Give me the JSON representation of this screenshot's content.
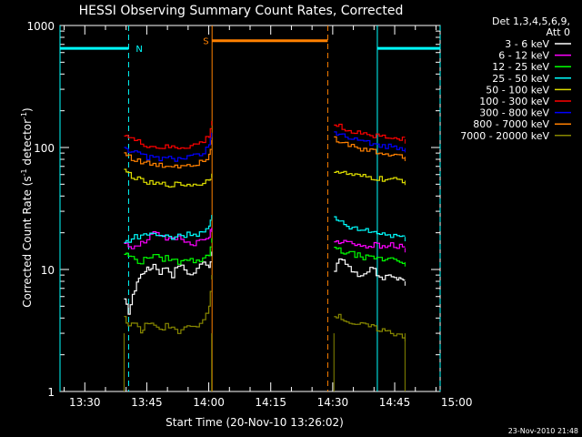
{
  "chart_data": {
    "type": "line",
    "title": "HESSI Observing Summary Count Rates, Corrected",
    "xlabel": "Start Time (20-Nov-10 13:26:02)",
    "ylabel_parts": [
      "Corrected Count Rate (s",
      "-1",
      " detector",
      "-1",
      ")"
    ],
    "yscale": "log",
    "ylim": [
      1,
      1000
    ],
    "xlim_min": [
      -6,
      86
    ],
    "x_ticks": [
      {
        "label": "13:30",
        "minute": 0
      },
      {
        "label": "13:45",
        "minute": 15
      },
      {
        "label": "14:00",
        "minute": 30
      },
      {
        "label": "14:15",
        "minute": 45
      },
      {
        "label": "14:30",
        "minute": 60
      },
      {
        "label": "14:45",
        "minute": 75
      },
      {
        "label": "15:00",
        "minute": 90
      }
    ],
    "y_ticks": [
      {
        "label": "1000",
        "value": 1000
      },
      {
        "label": "100",
        "value": 100
      },
      {
        "label": "10",
        "value": 10
      },
      {
        "label": "1",
        "value": 1
      }
    ],
    "legend_header": [
      "Det 1,3,4,5,6,9,",
      "Att 0"
    ],
    "series": [
      {
        "name": "3 - 6 keV",
        "color": "#ffffff",
        "seg1": [
          [
            9.5,
            5.5
          ],
          [
            10.5,
            4.5
          ],
          [
            11.5,
            6
          ],
          [
            12.5,
            8
          ],
          [
            13.5,
            9
          ],
          [
            14.5,
            10
          ],
          [
            15.5,
            10
          ],
          [
            16.5,
            11
          ],
          [
            18,
            9.5
          ],
          [
            19.5,
            10.5
          ],
          [
            21,
            9
          ],
          [
            22.5,
            11
          ],
          [
            24,
            10
          ],
          [
            25.5,
            9
          ],
          [
            27,
            10
          ],
          [
            28.5,
            12
          ],
          [
            30,
            10.5
          ],
          [
            30.7,
            14
          ]
        ],
        "seg2": [
          [
            60.3,
            10
          ],
          [
            61.5,
            12
          ],
          [
            63,
            11
          ],
          [
            64.5,
            10
          ],
          [
            66,
            9
          ],
          [
            67.5,
            9.5
          ],
          [
            69,
            10.5
          ],
          [
            70.5,
            9
          ],
          [
            72,
            8.5
          ],
          [
            73.5,
            9
          ],
          [
            75.5,
            8.5
          ],
          [
            76.5,
            8
          ],
          [
            77.5,
            8
          ]
        ]
      },
      {
        "name": "6 - 12 keV",
        "color": "#ff00ff",
        "seg1": [
          [
            9.5,
            17
          ],
          [
            10.5,
            15
          ],
          [
            12,
            16
          ],
          [
            13.5,
            16.5
          ],
          [
            15,
            17.5
          ],
          [
            16.5,
            21
          ],
          [
            18,
            19.5
          ],
          [
            19.5,
            18
          ],
          [
            21,
            17.5
          ],
          [
            22.5,
            18.5
          ],
          [
            24,
            17.5
          ],
          [
            25.5,
            16
          ],
          [
            27,
            17
          ],
          [
            28.5,
            17.5
          ],
          [
            30,
            18.5
          ],
          [
            30.7,
            22
          ]
        ],
        "seg2": [
          [
            60.3,
            17
          ],
          [
            62,
            16.5
          ],
          [
            64,
            17
          ],
          [
            66,
            16
          ],
          [
            68,
            15.5
          ],
          [
            70,
            16
          ],
          [
            72,
            15
          ],
          [
            74,
            16
          ],
          [
            75.5,
            15.5
          ],
          [
            77.5,
            15
          ]
        ]
      },
      {
        "name": "12 - 25 keV",
        "color": "#00ff00",
        "seg1": [
          [
            9.5,
            13.5
          ],
          [
            10.5,
            13
          ],
          [
            12,
            12
          ],
          [
            13.5,
            11.5
          ],
          [
            15,
            12.5
          ],
          [
            16.5,
            13.5
          ],
          [
            18,
            12
          ],
          [
            19.5,
            12.5
          ],
          [
            21,
            12
          ],
          [
            22.5,
            11.5
          ],
          [
            24,
            12.5
          ],
          [
            25.5,
            12
          ],
          [
            27,
            11.5
          ],
          [
            28.5,
            12.5
          ],
          [
            30,
            13.5
          ],
          [
            30.7,
            18
          ]
        ],
        "seg2": [
          [
            60.3,
            15
          ],
          [
            62,
            14
          ],
          [
            64,
            13.5
          ],
          [
            66,
            13
          ],
          [
            68,
            12.5
          ],
          [
            70,
            12.5
          ],
          [
            72,
            12
          ],
          [
            74,
            12.5
          ],
          [
            75.5,
            12
          ],
          [
            77.5,
            11.5
          ]
        ]
      },
      {
        "name": "25 - 50 keV",
        "color": "#00ffff",
        "seg1": [
          [
            9.5,
            16.5
          ],
          [
            10.5,
            17.5
          ],
          [
            12,
            18.5
          ],
          [
            13.5,
            19
          ],
          [
            15,
            19.5
          ],
          [
            16.5,
            20
          ],
          [
            18,
            18.5
          ],
          [
            19.5,
            19
          ],
          [
            21,
            18
          ],
          [
            22.5,
            19.5
          ],
          [
            24,
            19
          ],
          [
            25.5,
            20
          ],
          [
            27,
            19.5
          ],
          [
            28.5,
            20.5
          ],
          [
            30,
            22
          ],
          [
            30.7,
            28
          ]
        ],
        "seg2": [
          [
            60.3,
            26
          ],
          [
            62,
            24
          ],
          [
            64,
            22
          ],
          [
            66,
            21
          ],
          [
            68,
            21
          ],
          [
            70,
            20
          ],
          [
            72,
            19.5
          ],
          [
            74,
            19
          ],
          [
            75.5,
            19
          ],
          [
            77.5,
            18.5
          ]
        ]
      },
      {
        "name": "50 - 100 keV",
        "color": "#dddd00",
        "seg1": [
          [
            9.5,
            64
          ],
          [
            10.5,
            61
          ],
          [
            12,
            56
          ],
          [
            13.5,
            53
          ],
          [
            15,
            51.5
          ],
          [
            16.5,
            50
          ],
          [
            18,
            50
          ],
          [
            19.5,
            49.5
          ],
          [
            21,
            50
          ],
          [
            22.5,
            49.5
          ],
          [
            24,
            50
          ],
          [
            25.5,
            49.5
          ],
          [
            27,
            50
          ],
          [
            28.5,
            51.5
          ],
          [
            30,
            54
          ],
          [
            30.7,
            61
          ]
        ],
        "seg2": [
          [
            60.3,
            65
          ],
          [
            62,
            62
          ],
          [
            64,
            60
          ],
          [
            66,
            58
          ],
          [
            68,
            57
          ],
          [
            70,
            56
          ],
          [
            72,
            55
          ],
          [
            74,
            54
          ],
          [
            75.5,
            54
          ],
          [
            77.5,
            53.5
          ]
        ]
      },
      {
        "name": "100 - 300 keV",
        "color": "#ff0000",
        "seg1": [
          [
            9.5,
            130
          ],
          [
            10.5,
            122
          ],
          [
            12,
            113
          ],
          [
            13.5,
            108
          ],
          [
            15,
            104
          ],
          [
            16.5,
            101
          ],
          [
            18,
            100
          ],
          [
            19.5,
            100
          ],
          [
            21,
            100
          ],
          [
            22.5,
            100
          ],
          [
            24,
            101
          ],
          [
            25.5,
            103
          ],
          [
            27,
            106
          ],
          [
            28.5,
            112
          ],
          [
            30,
            125
          ],
          [
            30.7,
            165
          ]
        ],
        "seg2": [
          [
            60.3,
            155
          ],
          [
            61.5,
            148
          ],
          [
            63,
            141
          ],
          [
            64.5,
            137
          ],
          [
            66,
            133
          ],
          [
            67.5,
            130
          ],
          [
            69,
            127
          ],
          [
            70.5,
            124
          ],
          [
            72,
            121
          ],
          [
            73.5,
            119
          ],
          [
            75.5,
            118
          ],
          [
            77.5,
            117
          ]
        ]
      },
      {
        "name": "300 - 800 keV",
        "color": "#0000ff",
        "seg1": [
          [
            9.5,
            102
          ],
          [
            10.5,
            96
          ],
          [
            12,
            90
          ],
          [
            13.5,
            86
          ],
          [
            15,
            83.5
          ],
          [
            16.5,
            82
          ],
          [
            18,
            81
          ],
          [
            19.5,
            81
          ],
          [
            21,
            81
          ],
          [
            22.5,
            81
          ],
          [
            24,
            82
          ],
          [
            25.5,
            83.5
          ],
          [
            27,
            86
          ],
          [
            28.5,
            91
          ],
          [
            30,
            101
          ],
          [
            30.7,
            132
          ]
        ],
        "seg2": [
          [
            60.3,
            133
          ],
          [
            61.5,
            127
          ],
          [
            63,
            121
          ],
          [
            64.5,
            117
          ],
          [
            66,
            113
          ],
          [
            67.5,
            110
          ],
          [
            69,
            108
          ],
          [
            70.5,
            106
          ],
          [
            72,
            104
          ],
          [
            73.5,
            102
          ],
          [
            75.5,
            100
          ],
          [
            77.5,
            99
          ]
        ]
      },
      {
        "name": "800 - 7000 keV",
        "color": "#ff8000",
        "seg1": [
          [
            9.5,
            90
          ],
          [
            10.5,
            85
          ],
          [
            12,
            79
          ],
          [
            13.5,
            76
          ],
          [
            15,
            74
          ],
          [
            16.5,
            72
          ],
          [
            18,
            71
          ],
          [
            19.5,
            71
          ],
          [
            21,
            71
          ],
          [
            22.5,
            71
          ],
          [
            24,
            72
          ],
          [
            25.5,
            73
          ],
          [
            27,
            75
          ],
          [
            28.5,
            79
          ],
          [
            30,
            87
          ],
          [
            30.7,
            115
          ]
        ],
        "seg2": [
          [
            60.3,
            118
          ],
          [
            61.5,
            112
          ],
          [
            63,
            106
          ],
          [
            64.5,
            102
          ],
          [
            66,
            98
          ],
          [
            67.5,
            95
          ],
          [
            69,
            93
          ],
          [
            70.5,
            91
          ],
          [
            72,
            89
          ],
          [
            73.5,
            87
          ],
          [
            75.5,
            85
          ],
          [
            77.5,
            84
          ]
        ]
      },
      {
        "name": "7000 - 20000 keV",
        "color": "#888800",
        "seg1": [
          [
            9.5,
            4
          ],
          [
            10.5,
            3.5
          ],
          [
            12,
            3.6
          ],
          [
            13.5,
            3
          ],
          [
            14.5,
            3.5
          ],
          [
            16,
            3.5
          ],
          [
            18,
            3.2
          ],
          [
            19.5,
            3.5
          ],
          [
            21,
            3.5
          ],
          [
            22.5,
            3
          ],
          [
            24,
            3.5
          ],
          [
            25.5,
            3.5
          ],
          [
            27,
            3.5
          ],
          [
            28.5,
            4
          ],
          [
            30,
            5
          ],
          [
            30.7,
            9
          ]
        ],
        "seg2": [
          [
            60.3,
            4.3
          ],
          [
            62,
            4
          ],
          [
            64,
            3.7
          ],
          [
            66,
            3.5
          ],
          [
            68,
            3.5
          ],
          [
            70,
            3.3
          ],
          [
            72,
            3.2
          ],
          [
            74,
            3
          ],
          [
            75.5,
            3
          ],
          [
            77.5,
            2.8
          ]
        ]
      }
    ],
    "flags": [
      {
        "label": "N",
        "color": "#00ffff",
        "value": 650,
        "bars": [
          [
            -6,
            10.6
          ],
          [
            70.8,
            86
          ]
        ],
        "dashed": [
          10.6,
          86
        ],
        "solid": [
          -6,
          70.8
        ]
      },
      {
        "label": "S",
        "color": "#ff8000",
        "value": 750,
        "bars": [
          [
            30.8,
            58.8
          ]
        ],
        "dashed": [
          58.8
        ],
        "solid": [
          30.8
        ]
      }
    ],
    "segment_bounds_min": [
      [
        9.5,
        30.7
      ],
      [
        60.3,
        77.5
      ]
    ],
    "left_edge_bottom_color": "#888800",
    "footer_date": "23-Nov-2010 21:48"
  }
}
